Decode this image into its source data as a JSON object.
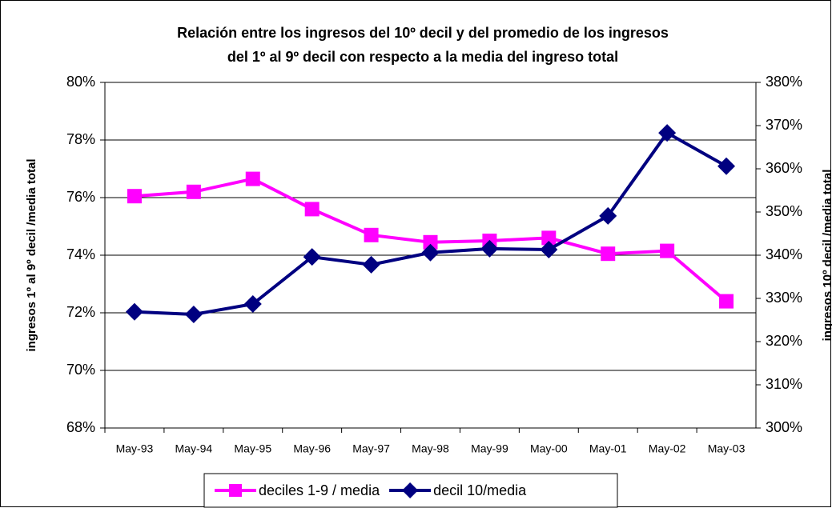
{
  "chart_data": {
    "type": "line",
    "title": [
      "Relación entre los ingresos del 10º decil y del promedio de los ingresos",
      "del 1º al 9º decil con respecto a la media del ingreso total"
    ],
    "y_label": "ingresos 1º al 9º decil /media total",
    "y2_label": "ingresos 10º decil /media total",
    "categories": [
      "May-93",
      "May-94",
      "May-95",
      "May-96",
      "May-97",
      "May-98",
      "May-99",
      "May-00",
      "May-01",
      "May-02",
      "May-03"
    ],
    "series": [
      {
        "name": "deciles 1-9 / media",
        "color": "#ff00ff",
        "marker": "square",
        "values": [
          76.05,
          76.2,
          76.65,
          75.6,
          74.7,
          74.45,
          74.5,
          74.6,
          74.05,
          74.15,
          72.4
        ]
      },
      {
        "name": "decil 10/media",
        "color": "#000080",
        "marker": "diamond",
        "axis": "y2",
        "values": [
          326.9,
          326.3,
          328.7,
          339.6,
          337.8,
          340.6,
          341.5,
          341.3,
          349.1,
          368.3,
          360.6
        ]
      }
    ],
    "ylim": [
      68,
      80
    ],
    "yticks": [
      {
        "value": 68,
        "label": "68%"
      },
      {
        "value": 70,
        "label": "70%"
      },
      {
        "value": 72,
        "label": "72%"
      },
      {
        "value": 74,
        "label": "74%"
      },
      {
        "value": 76,
        "label": "76%"
      },
      {
        "value": 78,
        "label": "78%"
      },
      {
        "value": 80,
        "label": "80%"
      }
    ],
    "y2lim": [
      300,
      380
    ],
    "y2ticks": [
      {
        "value": 300,
        "label": "300%"
      },
      {
        "value": 310,
        "label": "310%"
      },
      {
        "value": 320,
        "label": "320%"
      },
      {
        "value": 330,
        "label": "330%"
      },
      {
        "value": 340,
        "label": "340%"
      },
      {
        "value": 350,
        "label": "350%"
      },
      {
        "value": 360,
        "label": "360%"
      },
      {
        "value": 370,
        "label": "370%"
      },
      {
        "value": 380,
        "label": "380%"
      }
    ],
    "grid": true,
    "legend": "bottom"
  }
}
